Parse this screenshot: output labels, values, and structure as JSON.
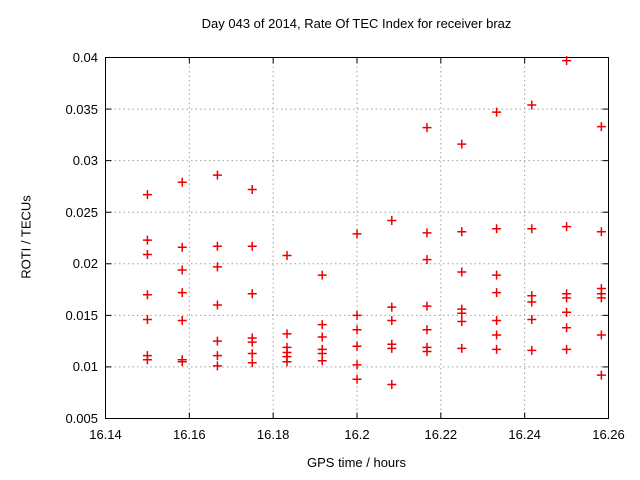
{
  "title": "Day 043 of 2014, Rate Of TEC Index for receiver braz",
  "colors": {
    "marker": "#ee0000",
    "grid": "#a0a0a0",
    "axis": "#000000",
    "background": "#ffffff"
  },
  "chart_data": {
    "type": "scatter",
    "title": "Day 043 of 2014, Rate Of TEC Index for receiver braz",
    "xlabel": "GPS time / hours",
    "ylabel": "ROTI / TECUs",
    "xlim": [
      16.14,
      16.26
    ],
    "ylim": [
      0.005,
      0.04
    ],
    "xtick_values": [
      16.14,
      16.16,
      16.18,
      16.2,
      16.22,
      16.24,
      16.26
    ],
    "xtick_labels": [
      "16.14",
      "16.16",
      "16.18",
      "16.2",
      "16.22",
      "16.24",
      "16.26"
    ],
    "ytick_values": [
      0.005,
      0.01,
      0.015,
      0.02,
      0.025,
      0.03,
      0.035,
      0.04
    ],
    "ytick_labels": [
      "0.005",
      "0.01",
      "0.015",
      "0.02",
      "0.025",
      "0.03",
      "0.035",
      "0.04"
    ],
    "grid": "dotted",
    "legend": "none",
    "marker": "plus",
    "series": [
      {
        "name": "ROTI",
        "points": [
          [
            16.15,
            0.0267
          ],
          [
            16.15,
            0.0223
          ],
          [
            16.15,
            0.0209
          ],
          [
            16.15,
            0.017
          ],
          [
            16.15,
            0.0146
          ],
          [
            16.15,
            0.0111
          ],
          [
            16.15,
            0.0107
          ],
          [
            16.1583,
            0.0279
          ],
          [
            16.1583,
            0.0216
          ],
          [
            16.1583,
            0.0194
          ],
          [
            16.1583,
            0.0172
          ],
          [
            16.1583,
            0.0145
          ],
          [
            16.1583,
            0.0107
          ],
          [
            16.1583,
            0.0105
          ],
          [
            16.1667,
            0.0286
          ],
          [
            16.1667,
            0.0217
          ],
          [
            16.1667,
            0.0197
          ],
          [
            16.1667,
            0.016
          ],
          [
            16.1667,
            0.0125
          ],
          [
            16.1667,
            0.0111
          ],
          [
            16.1667,
            0.0101
          ],
          [
            16.175,
            0.0272
          ],
          [
            16.175,
            0.0217
          ],
          [
            16.175,
            0.0171
          ],
          [
            16.175,
            0.0128
          ],
          [
            16.175,
            0.0124
          ],
          [
            16.175,
            0.0113
          ],
          [
            16.175,
            0.0104
          ],
          [
            16.1833,
            0.0208
          ],
          [
            16.1833,
            0.0132
          ],
          [
            16.1833,
            0.0119
          ],
          [
            16.1833,
            0.0114
          ],
          [
            16.1833,
            0.011
          ],
          [
            16.1833,
            0.0105
          ],
          [
            16.1917,
            0.0189
          ],
          [
            16.1917,
            0.0141
          ],
          [
            16.1917,
            0.0129
          ],
          [
            16.1917,
            0.0117
          ],
          [
            16.1917,
            0.0113
          ],
          [
            16.1917,
            0.0106
          ],
          [
            16.2,
            0.0229
          ],
          [
            16.2,
            0.015
          ],
          [
            16.2,
            0.0136
          ],
          [
            16.2,
            0.012
          ],
          [
            16.2,
            0.0102
          ],
          [
            16.2,
            0.0088
          ],
          [
            16.2083,
            0.0242
          ],
          [
            16.2083,
            0.0158
          ],
          [
            16.2083,
            0.0145
          ],
          [
            16.2083,
            0.0122
          ],
          [
            16.2083,
            0.0118
          ],
          [
            16.2083,
            0.0083
          ],
          [
            16.2167,
            0.0332
          ],
          [
            16.2167,
            0.023
          ],
          [
            16.2167,
            0.0204
          ],
          [
            16.2167,
            0.0159
          ],
          [
            16.2167,
            0.0136
          ],
          [
            16.2167,
            0.0119
          ],
          [
            16.2167,
            0.0115
          ],
          [
            16.225,
            0.0316
          ],
          [
            16.225,
            0.0231
          ],
          [
            16.225,
            0.0192
          ],
          [
            16.225,
            0.0156
          ],
          [
            16.225,
            0.0152
          ],
          [
            16.225,
            0.0144
          ],
          [
            16.225,
            0.0118
          ],
          [
            16.2333,
            0.0347
          ],
          [
            16.2333,
            0.0234
          ],
          [
            16.2333,
            0.0189
          ],
          [
            16.2333,
            0.0172
          ],
          [
            16.2333,
            0.0145
          ],
          [
            16.2333,
            0.0131
          ],
          [
            16.2333,
            0.0117
          ],
          [
            16.2417,
            0.0354
          ],
          [
            16.2417,
            0.0234
          ],
          [
            16.2417,
            0.0169
          ],
          [
            16.2417,
            0.0163
          ],
          [
            16.2417,
            0.0146
          ],
          [
            16.2417,
            0.0116
          ],
          [
            16.25,
            0.0397
          ],
          [
            16.25,
            0.0236
          ],
          [
            16.25,
            0.0171
          ],
          [
            16.25,
            0.0167
          ],
          [
            16.25,
            0.0153
          ],
          [
            16.25,
            0.0138
          ],
          [
            16.25,
            0.0117
          ],
          [
            16.2583,
            0.0333
          ],
          [
            16.2583,
            0.0231
          ],
          [
            16.2583,
            0.0176
          ],
          [
            16.2583,
            0.0171
          ],
          [
            16.2583,
            0.0167
          ],
          [
            16.2583,
            0.0131
          ],
          [
            16.2583,
            0.0092
          ]
        ]
      }
    ]
  }
}
